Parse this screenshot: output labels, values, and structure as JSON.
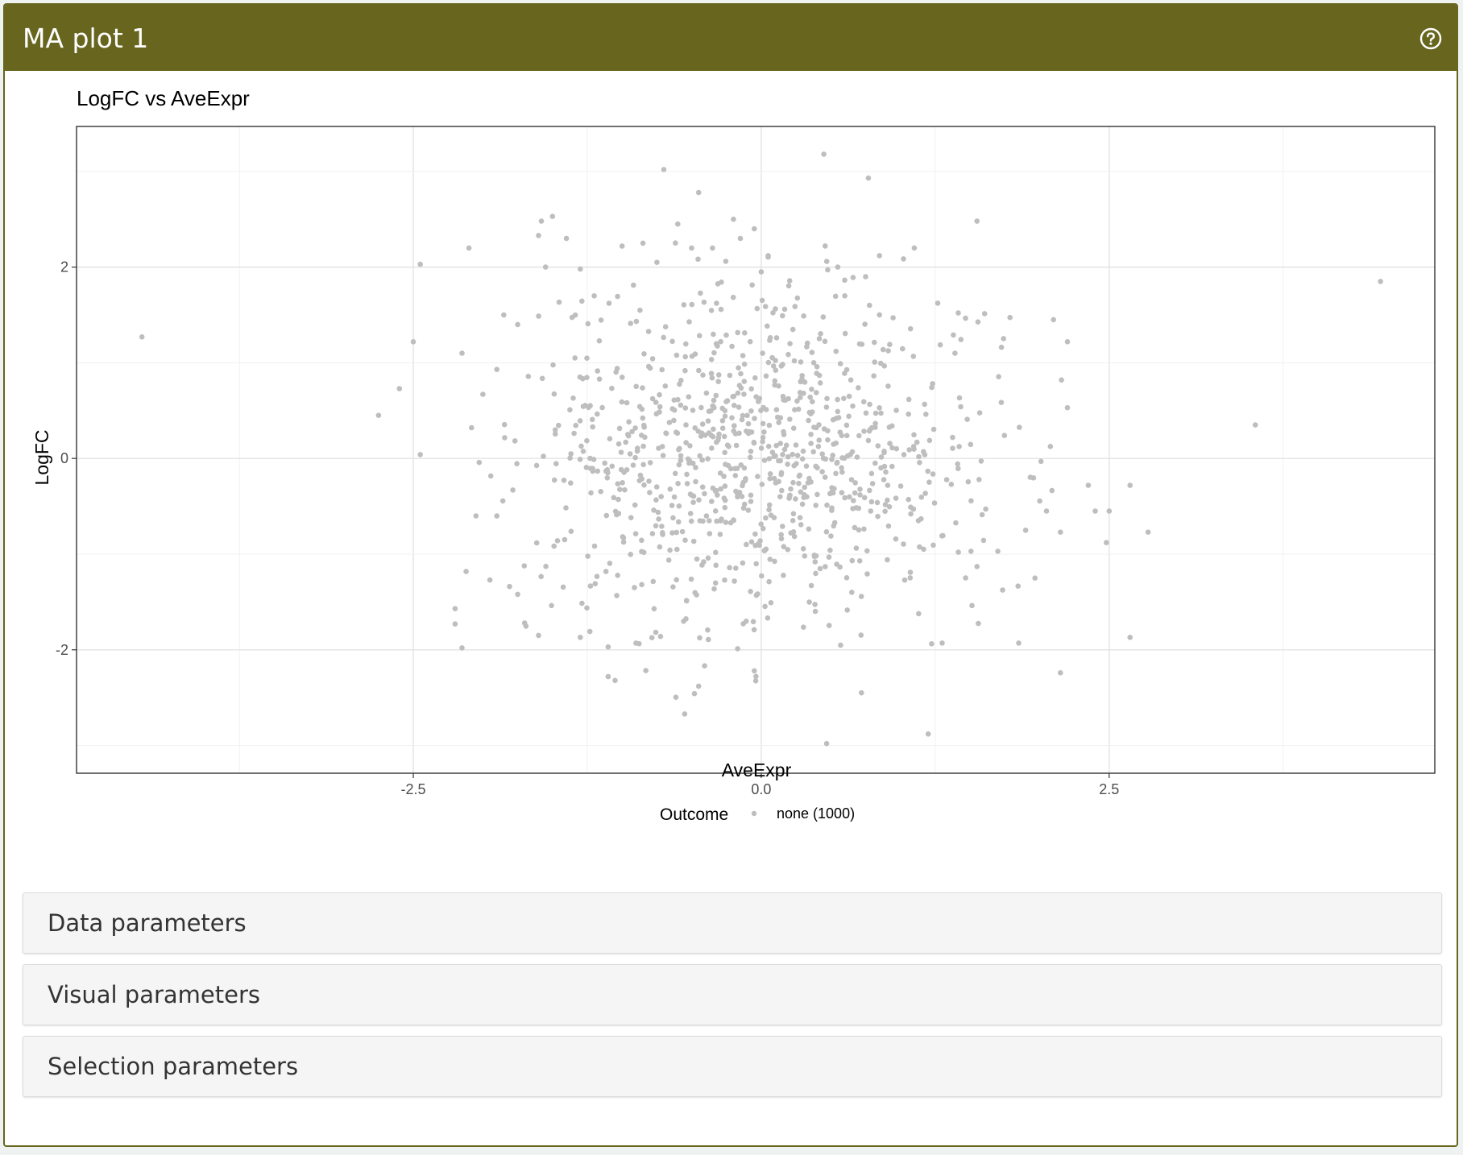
{
  "panel": {
    "title": "MA plot 1",
    "help_icon": "question-circle-icon",
    "header_color": "#67651e"
  },
  "chart_data": {
    "type": "scatter",
    "title": "LogFC vs AveExpr",
    "xlabel": "AveExpr",
    "ylabel": "LogFC",
    "xlim": [
      -4.92,
      4.84
    ],
    "ylim": [
      -3.29,
      3.47
    ],
    "xticks": [
      -2.5,
      0.0,
      2.5
    ],
    "xtick_labels": [
      "-2.5",
      "0.0",
      "2.5"
    ],
    "yticks": [
      -2,
      0,
      2
    ],
    "ytick_labels": [
      "-2",
      "0",
      "2"
    ],
    "grid": true,
    "point_color": "#bebebe",
    "legend": {
      "title": "Outcome",
      "placement": "bottom",
      "entries": [
        {
          "label": "none (1000)",
          "color": "#bebebe"
        }
      ]
    },
    "n_points": 1000,
    "seed": 7,
    "series": [
      {
        "points": [
          [
            -4.45,
            1.27
          ],
          [
            4.45,
            1.85
          ],
          [
            3.55,
            0.35
          ],
          [
            -2.75,
            0.45
          ],
          [
            -2.6,
            0.73
          ],
          [
            -2.45,
            2.03
          ],
          [
            -2.5,
            1.22
          ],
          [
            -2.45,
            0.04
          ],
          [
            -2.2,
            -1.57
          ],
          [
            -2.2,
            -1.73
          ],
          [
            -2.15,
            -1.98
          ],
          [
            -2.15,
            1.1
          ],
          [
            -2.1,
            2.2
          ],
          [
            -2.05,
            -0.6
          ],
          [
            -1.9,
            -0.6
          ],
          [
            0.45,
            3.18
          ],
          [
            0.77,
            2.93
          ],
          [
            -0.7,
            3.02
          ],
          [
            -0.45,
            2.78
          ],
          [
            -0.6,
            2.45
          ],
          [
            -1.5,
            2.53
          ],
          [
            -1.58,
            2.48
          ],
          [
            -1.6,
            2.33
          ],
          [
            -0.2,
            2.5
          ],
          [
            1.55,
            2.48
          ],
          [
            0.85,
            2.12
          ],
          [
            1.1,
            2.2
          ],
          [
            2.1,
            1.45
          ],
          [
            2.2,
            1.22
          ],
          [
            2.2,
            0.53
          ],
          [
            2.35,
            -0.28
          ],
          [
            2.4,
            -0.55
          ],
          [
            2.5,
            -0.55
          ],
          [
            2.48,
            -0.88
          ],
          [
            2.65,
            -0.28
          ],
          [
            2.78,
            -0.77
          ],
          [
            2.65,
            -1.87
          ],
          [
            2.15,
            -2.24
          ],
          [
            1.2,
            -2.88
          ],
          [
            0.47,
            -2.98
          ],
          [
            -0.55,
            -2.67
          ],
          [
            -0.45,
            -2.38
          ],
          [
            -1.1,
            -2.28
          ],
          [
            -1.05,
            -2.32
          ],
          [
            0.72,
            -2.45
          ],
          [
            1.85,
            -1.93
          ],
          [
            2.15,
            -0.77
          ],
          [
            -0.05,
            -2.22
          ],
          [
            0.0,
            1.95
          ],
          [
            0.05,
            2.12
          ],
          [
            0.55,
            2.0
          ],
          [
            0.6,
            1.7
          ],
          [
            0.75,
            1.9
          ],
          [
            -0.05,
            2.4
          ],
          [
            -0.15,
            2.3
          ],
          [
            -0.35,
            2.2
          ],
          [
            -0.5,
            2.2
          ],
          [
            -0.75,
            2.05
          ],
          [
            -1.0,
            2.22
          ],
          [
            -0.85,
            2.25
          ],
          [
            -1.4,
            2.3
          ],
          [
            -1.55,
            2.0
          ],
          [
            -1.3,
            1.98
          ],
          [
            -1.2,
            1.7
          ],
          [
            -2.0,
            0.67
          ],
          [
            -1.9,
            0.93
          ],
          [
            -1.85,
            1.5
          ],
          [
            -1.75,
            1.4
          ],
          [
            -1.95,
            -1.27
          ],
          [
            -1.75,
            -1.42
          ],
          [
            -1.7,
            -1.72
          ],
          [
            -1.6,
            -1.85
          ],
          [
            -1.3,
            -1.87
          ],
          [
            -1.1,
            -1.97
          ],
          [
            -0.9,
            -1.93
          ],
          [
            1.3,
            -1.93
          ],
          [
            1.55,
            -1.13
          ],
          [
            1.7,
            -0.97
          ],
          [
            1.9,
            -0.75
          ],
          [
            2.05,
            -0.55
          ]
        ]
      }
    ]
  },
  "sections": [
    {
      "label": "Data parameters"
    },
    {
      "label": "Visual parameters"
    },
    {
      "label": "Selection parameters"
    }
  ]
}
